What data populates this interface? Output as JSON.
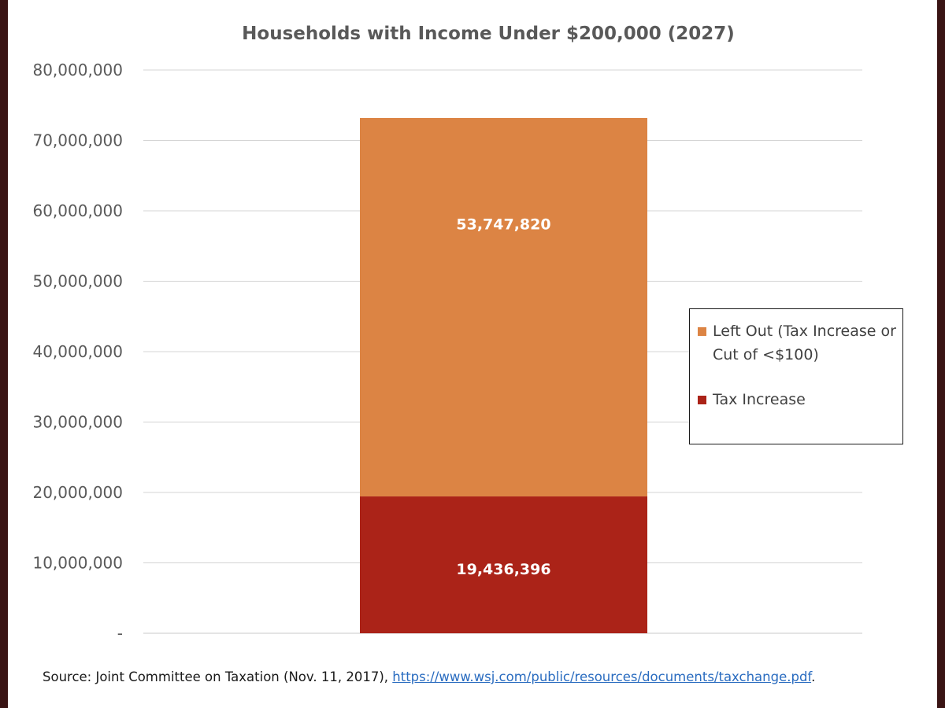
{
  "chart_data": {
    "type": "bar",
    "stacked": true,
    "title": "Households with Income Under $200,000 (2027)",
    "xlabel": "",
    "ylabel": "",
    "ylim": [
      0,
      80000000
    ],
    "yticks": [
      0,
      10000000,
      20000000,
      30000000,
      40000000,
      50000000,
      60000000,
      70000000,
      80000000
    ],
    "ytick_labels": [
      "-",
      "10,000,000",
      "20,000,000",
      "30,000,000",
      "40,000,000",
      "50,000,000",
      "60,000,000",
      "70,000,000",
      "80,000,000"
    ],
    "grid": true,
    "legend_position": "right",
    "categories": [
      ""
    ],
    "series": [
      {
        "name": "Tax Increase",
        "values": [
          19436396
        ],
        "label": "19,436,396",
        "color": "#ab2318"
      },
      {
        "name": "Left Out (Tax Increase or Cut of <$100)",
        "values": [
          53747820
        ],
        "label": "53,747,820",
        "color": "#dc8444"
      }
    ],
    "legend": [
      {
        "name": "Left Out (Tax Increase or Cut of <$100)",
        "color": "#dc8444"
      },
      {
        "name": "Tax Increase",
        "color": "#ab2318"
      }
    ]
  },
  "source": {
    "prefix": "Source: Joint Committee on Taxation (Nov. 11, 2017), ",
    "link_text": "https://www.wsj.com/public/resources/documents/taxchange.pdf",
    "suffix": "."
  }
}
